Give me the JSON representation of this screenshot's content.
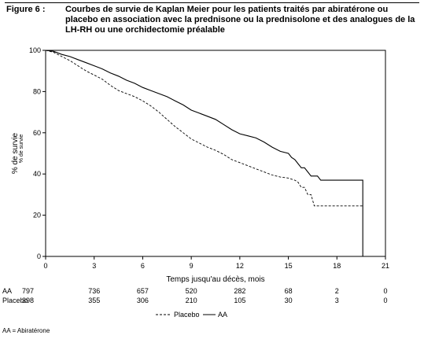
{
  "caption": {
    "label": "Figure 6 :",
    "text": "Courbes de survie de Kaplan Meier pour les patients traités par abiratérone ou placebo en association avec la prednisone ou la prednisolone et des analogues de la LH-RH ou une orchidectomie préalable"
  },
  "chart_data": {
    "type": "line",
    "xlabel": "Temps jusqu'au décès, mois",
    "ylabel": "% de survie",
    "ylabel_overprint": "% de survie",
    "xlim": [
      0,
      21
    ],
    "ylim": [
      0,
      100
    ],
    "xticks": [
      0,
      3,
      6,
      9,
      12,
      15,
      18,
      21
    ],
    "yticks": [
      0,
      20,
      40,
      60,
      80,
      100
    ],
    "grid": false,
    "legend_position": "bottom-center",
    "series": [
      {
        "name": "AA",
        "style": "solid",
        "color": "#000000",
        "x": [
          0,
          0.5,
          1,
          1.5,
          2,
          2.5,
          3,
          3.5,
          4,
          4.5,
          5,
          5.5,
          6,
          6.5,
          7,
          7.5,
          8,
          8.5,
          9,
          9.5,
          10,
          10.5,
          11,
          11.5,
          12,
          12.5,
          13,
          13.5,
          14,
          14.5,
          15,
          15.2,
          15.4,
          15.6,
          15.8,
          16,
          16.2,
          16.4,
          16.6,
          16.8,
          17,
          17.5,
          18,
          18.5,
          19,
          19.5,
          19.6,
          19.6
        ],
        "y": [
          100,
          99.5,
          98,
          97,
          95.5,
          94,
          92.5,
          91,
          89,
          87.5,
          85.5,
          84,
          82,
          80.5,
          79,
          77.5,
          75.5,
          73.5,
          71,
          69.5,
          68,
          66.5,
          64,
          61.5,
          59.5,
          58.5,
          57.5,
          55.5,
          53,
          51,
          50,
          48,
          47,
          45,
          43,
          43,
          41,
          39,
          39,
          39,
          37,
          37,
          37,
          37,
          37,
          37,
          37,
          0
        ]
      },
      {
        "name": "Placebo",
        "style": "dashed",
        "color": "#000000",
        "x": [
          0,
          0.5,
          1,
          1.5,
          2,
          2.5,
          3,
          3.5,
          4,
          4.5,
          5,
          5.5,
          6,
          6.5,
          7,
          7.5,
          8,
          8.5,
          9,
          9.5,
          10,
          10.5,
          11,
          11.5,
          12,
          12.5,
          13,
          13.5,
          14,
          14.5,
          15,
          15.2,
          15.4,
          15.6,
          15.8,
          16,
          16.2,
          16.4,
          16.6,
          16.8,
          17,
          17.5,
          18,
          18.5,
          19,
          19.5,
          19.6,
          19.6
        ],
        "y": [
          100,
          99,
          97,
          95,
          92.5,
          90,
          88,
          86,
          83,
          80.5,
          79,
          77.5,
          75.5,
          73,
          70,
          66.5,
          63,
          60,
          57,
          55,
          53,
          51.5,
          49.5,
          47,
          45.5,
          44,
          42.5,
          41,
          39.5,
          38.5,
          38,
          37.5,
          37,
          36,
          33.5,
          33.5,
          30,
          30,
          24.5,
          24.5,
          24.5,
          24.5,
          24.5,
          24.5,
          24.5,
          24.5,
          24.5,
          24.5
        ]
      }
    ],
    "risk_table": {
      "rows": [
        {
          "label": "AA",
          "values": [
            "797",
            "736",
            "657",
            "520",
            "282",
            "68",
            "2",
            "0"
          ]
        },
        {
          "label": "Placebo",
          "values": [
            "398",
            "355",
            "306",
            "210",
            "105",
            "30",
            "3",
            "0"
          ]
        }
      ]
    }
  },
  "legend": {
    "placebo": "Placebo",
    "aa": "AA"
  },
  "footnote": "AA = Abiratérone"
}
